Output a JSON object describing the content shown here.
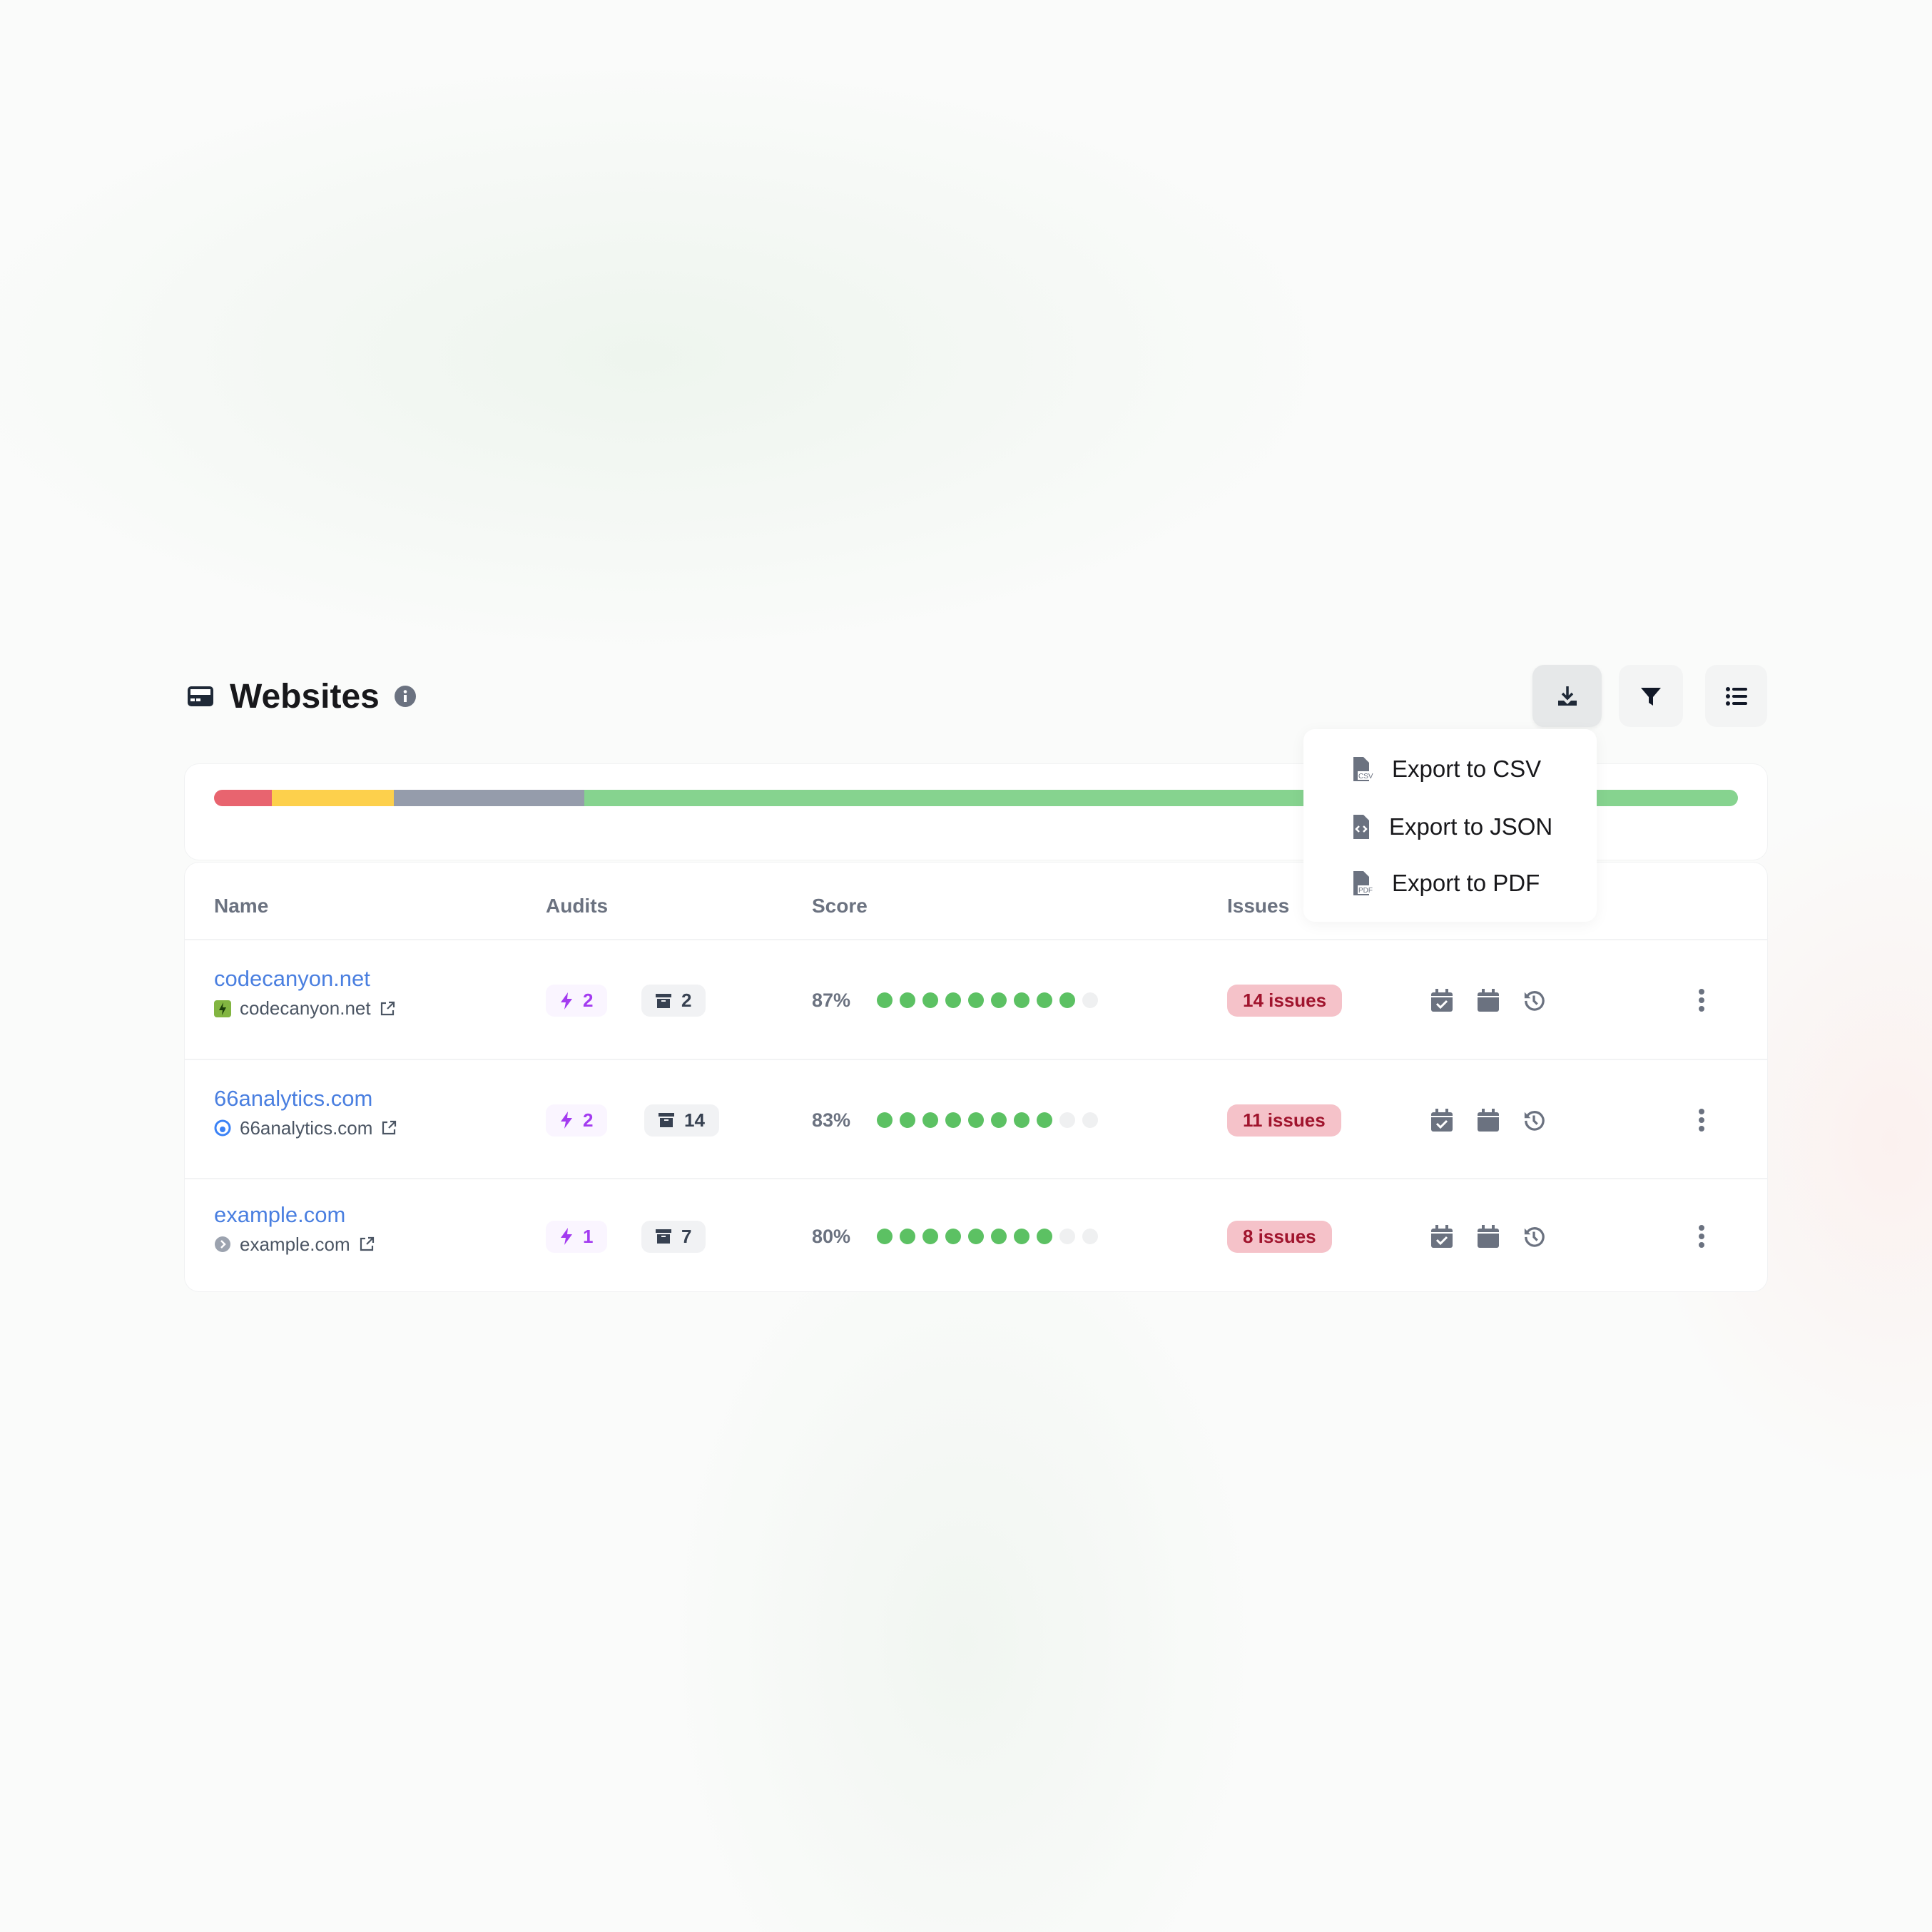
{
  "header": {
    "title": "Websites",
    "icon": "websites-icon",
    "info_icon": "info-icon"
  },
  "toolbar": {
    "download_icon": "download-icon",
    "filter_icon": "filter-icon",
    "list_icon": "list-icon"
  },
  "export_menu": {
    "items": [
      {
        "label": "Export to CSV",
        "icon": "file-csv-icon"
      },
      {
        "label": "Export to JSON",
        "icon": "file-code-icon"
      },
      {
        "label": "Export to PDF",
        "icon": "file-pdf-icon"
      }
    ]
  },
  "score_distribution": {
    "segments": [
      {
        "color": "#e8646f",
        "percent": 3.8
      },
      {
        "color": "#fdd04c",
        "percent": 8.0
      },
      {
        "color": "#959cab",
        "percent": 12.5
      },
      {
        "color": "#86d38f",
        "percent": 75.7
      }
    ]
  },
  "table": {
    "columns": [
      "Name",
      "Audits",
      "Score",
      "Issues"
    ],
    "rows": [
      {
        "name": "codecanyon.net",
        "host": "codecanyon.net",
        "lightning": "2",
        "archived": "2",
        "score": "87%",
        "score_dots": 9,
        "issues": "14 issues",
        "favicon_color": "#82b541"
      },
      {
        "name": "66analytics.com",
        "host": "66analytics.com",
        "lightning": "2",
        "archived": "14",
        "score": "83%",
        "score_dots": 8,
        "issues": "11 issues",
        "favicon_color": "#3b82f6"
      },
      {
        "name": "example.com",
        "host": "example.com",
        "lightning": "1",
        "archived": "7",
        "score": "80%",
        "score_dots": 8,
        "issues": "8 issues",
        "favicon_color": "#9ca3af"
      }
    ]
  },
  "colors": {
    "link": "#4a7fe0",
    "dot_on": "#5cc163",
    "dot_off": "#eff0f1",
    "issues_bg": "#f5c2c9",
    "issues_text": "#a0142d"
  }
}
